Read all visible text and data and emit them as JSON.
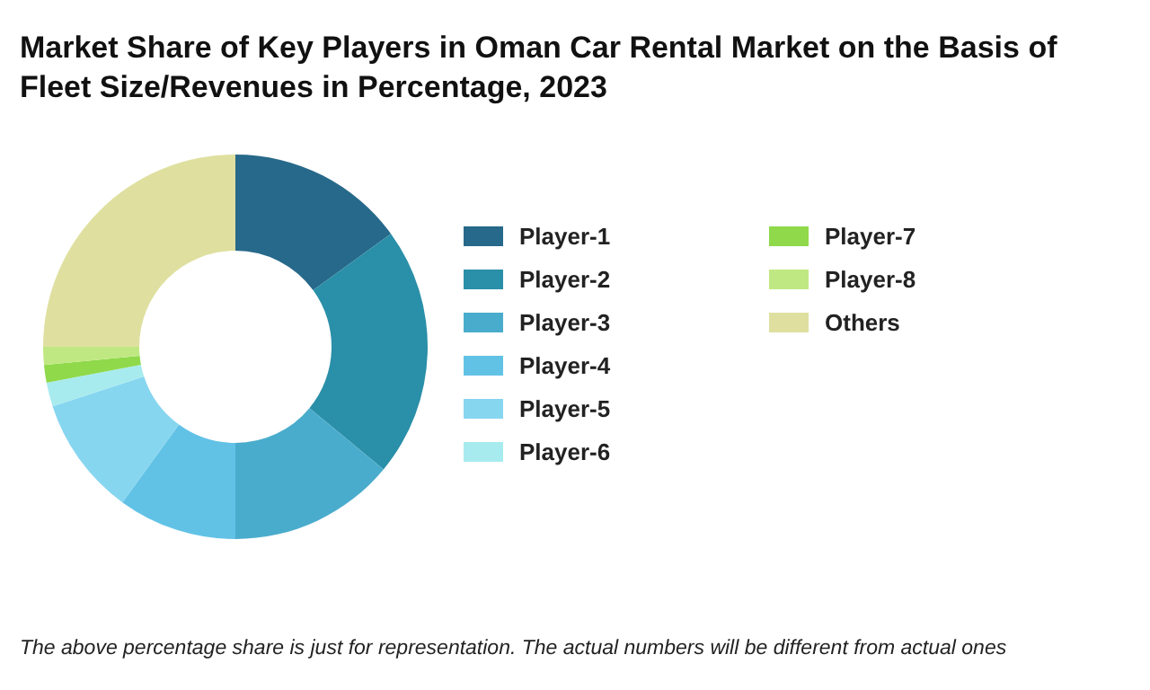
{
  "chart_data": {
    "type": "donut",
    "title": "Market Share of Key Players in Oman Car Rental Market on the Basis of Fleet Size/Revenues in Percentage, 2023",
    "categories": [
      "Player-1",
      "Player-2",
      "Player-3",
      "Player-4",
      "Player-5",
      "Player-6",
      "Player-7",
      "Player-8",
      "Others"
    ],
    "values": [
      15,
      21,
      14,
      10,
      10,
      2,
      1.5,
      1.5,
      25
    ],
    "colors": [
      "#27698a",
      "#2a8fa8",
      "#4aaccc",
      "#62c2e6",
      "#87d6f0",
      "#a8ebee",
      "#8fd94a",
      "#c0e882",
      "#dfe0a0"
    ],
    "legend": "right",
    "annotations": [
      "The above percentage share is just for representation. The actual numbers will be different from actual ones"
    ]
  }
}
